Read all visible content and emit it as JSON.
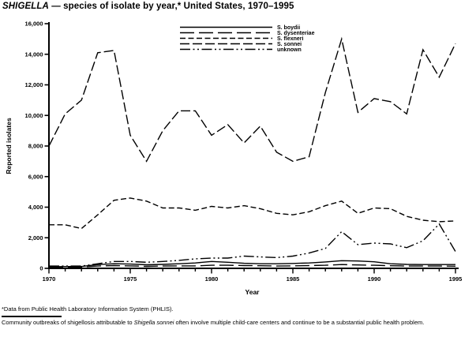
{
  "title": {
    "italic": "SHIGELLA",
    "rest": " — species of isolate by year,* United States, 1970–1995"
  },
  "footnotes": {
    "source": "*Data from Public Health Laboratory Information System (PHLIS).",
    "note_pre": "Community outbreaks of shigellosis attributable to ",
    "note_italic": "Shigella sonnei",
    "note_post": " often involve multiple child-care centers and continue to be a substantial public health problem."
  },
  "chart_data": {
    "type": "line",
    "title": "SHIGELLA — species of isolate by year,* United States, 1970–1995",
    "xlabel": "Year",
    "ylabel": "Reported isolates",
    "grid": false,
    "legend_position": "top-right-inside",
    "color": "#000000",
    "xlim": [
      1970,
      1995
    ],
    "ylim": [
      0,
      16000
    ],
    "ytick_interval": 2000,
    "ytick_labels": [
      "0",
      "2,000",
      "4,000",
      "6,000",
      "8,000",
      "10,000",
      "12,000",
      "14,000",
      "16,000"
    ],
    "xtick_labeled": [
      1970,
      1975,
      1980,
      1985,
      1990,
      1995
    ],
    "x": [
      1970,
      1971,
      1972,
      1973,
      1974,
      1975,
      1976,
      1977,
      1978,
      1979,
      1980,
      1981,
      1982,
      1983,
      1984,
      1985,
      1986,
      1987,
      1988,
      1989,
      1990,
      1991,
      1992,
      1993,
      1994,
      1995
    ],
    "series": [
      {
        "name": "S. boydii",
        "italic": true,
        "dash": "",
        "values": [
          100,
          120,
          120,
          250,
          300,
          280,
          230,
          260,
          300,
          350,
          450,
          400,
          330,
          300,
          300,
          320,
          350,
          420,
          500,
          480,
          430,
          300,
          260,
          250,
          250,
          250
        ]
      },
      {
        "name": "S. dysenteriae",
        "italic": true,
        "dash": "18,6",
        "values": [
          50,
          60,
          80,
          150,
          180,
          160,
          130,
          150,
          160,
          160,
          200,
          200,
          180,
          170,
          150,
          160,
          180,
          200,
          250,
          220,
          200,
          170,
          150,
          150,
          150,
          140
        ]
      },
      {
        "name": "S. flexneri",
        "italic": true,
        "dash": "7,3.5",
        "values": [
          2850,
          2850,
          2600,
          3500,
          4450,
          4600,
          4400,
          3950,
          3950,
          3800,
          4050,
          3950,
          4100,
          3900,
          3600,
          3500,
          3700,
          4100,
          4400,
          3600,
          3950,
          3900,
          3400,
          3150,
          3050,
          3100
        ]
      },
      {
        "name": "S. sonnei",
        "italic": true,
        "dash": "12,4",
        "values": [
          8000,
          10100,
          11000,
          14100,
          14250,
          8700,
          7000,
          9000,
          10300,
          10300,
          8700,
          9400,
          8200,
          9300,
          7600,
          7000,
          7300,
          11500,
          15000,
          10200,
          11100,
          10900,
          10100,
          14300,
          12500,
          14700
        ]
      },
      {
        "name": "unknown",
        "italic": false,
        "dash": "13,3.5,2,3.5,2,3.5",
        "values": [
          150,
          150,
          150,
          300,
          450,
          450,
          400,
          450,
          520,
          620,
          670,
          670,
          800,
          750,
          700,
          800,
          1000,
          1300,
          2400,
          1550,
          1650,
          1600,
          1350,
          1800,
          2900,
          1100
        ]
      }
    ]
  }
}
